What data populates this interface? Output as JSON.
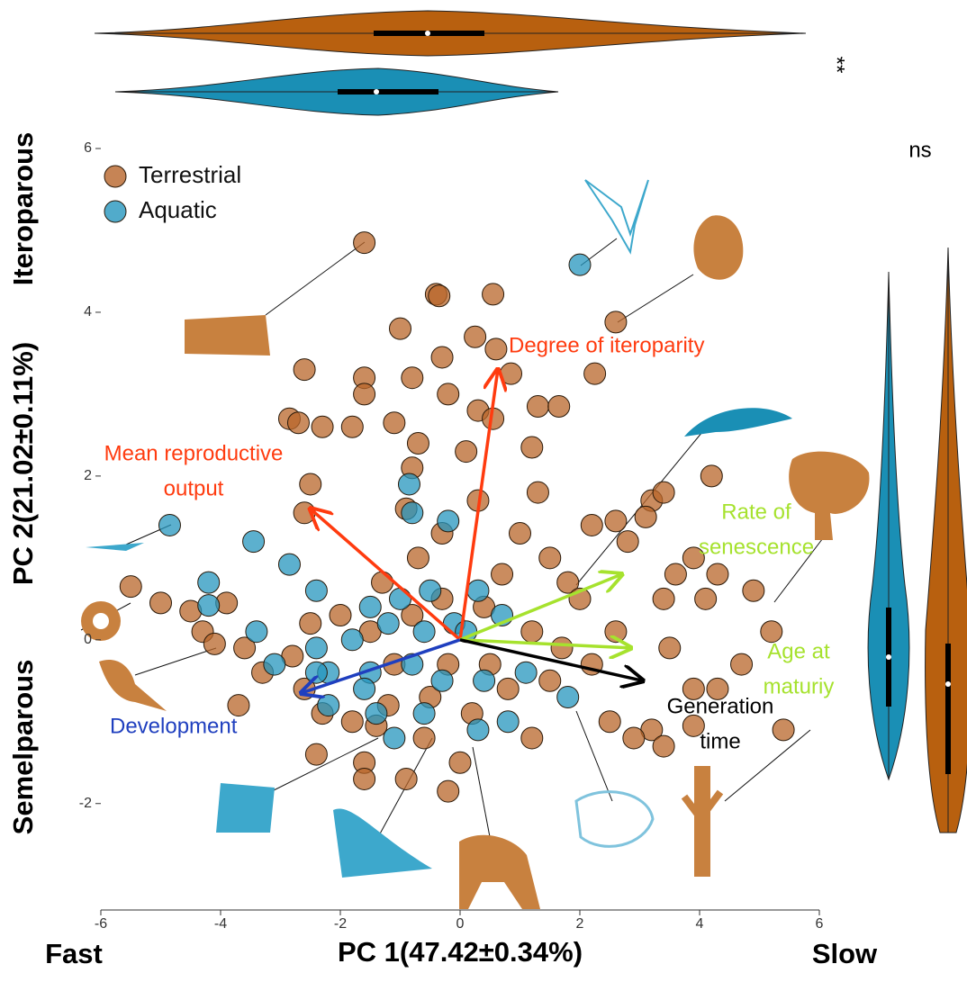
{
  "chart_data": {
    "type": "scatter",
    "x_label": "PC 1(47.42±0.34%)",
    "x_label_left": "Fast",
    "x_label_right": "Slow",
    "y_label": "PC 2(21.02±0.11%)",
    "y_label_top": "Iteroparous",
    "y_label_bottom": "Semelparous",
    "top_violin_note": "**",
    "right_violin_note": "ns",
    "xlim": [
      -6,
      6
    ],
    "ylim": [
      -3.3,
      6
    ],
    "xticks": [
      -6,
      -4,
      -2,
      0,
      2,
      4,
      6
    ],
    "yticks": [
      -2,
      0,
      2,
      4,
      6
    ],
    "legend_position": "top-left",
    "series": [
      {
        "name": "Terrestrial",
        "color": "#b8652a",
        "x": [
          -1.6,
          -0.4,
          -0.35,
          0.55,
          -1,
          0.25,
          0.6,
          2.6,
          -0.3,
          -2.6,
          -1.6,
          -0.8,
          0.85,
          2.25,
          -1.6,
          -0.2,
          -2.85,
          -2.7,
          -1.8,
          -2.3,
          -1.1,
          0.3,
          0.55,
          1.3,
          1.65,
          -0.7,
          0.1,
          1.2,
          -2.5,
          -0.8,
          0.3,
          1.3,
          3.2,
          3.4,
          4.2,
          -2.6,
          -0.9,
          -0.3,
          1,
          2.2,
          2.6,
          2.8,
          3.1,
          1.5,
          -0.7,
          3.9,
          3.6,
          4.3,
          -1.3,
          0.7,
          1.8,
          2,
          3.4,
          4.1,
          -5.5,
          -5,
          -4.5,
          -3.9,
          -4.3,
          -3.6,
          -2.5,
          -2,
          -1.5,
          -3.3,
          -2.6,
          -3.7,
          -2.3,
          -1.8,
          -1.2,
          -0.5,
          0.2,
          0.8,
          1.5,
          2.2,
          3.5,
          4.7,
          5.2,
          4.9,
          5.4,
          3.2,
          3.4,
          3.9,
          2.9,
          2.5,
          1.2,
          0,
          -0.6,
          -1.6,
          -2.4,
          -1.6,
          -0.9,
          -0.2,
          -1.4,
          0.5,
          -0.3,
          0.4,
          -0.8,
          1.2,
          -1.1,
          -0.2,
          2.6,
          1.7,
          3.9,
          4.3,
          -2.8,
          -4.1
        ],
        "y": [
          4.85,
          4.22,
          4.2,
          4.22,
          3.8,
          3.7,
          3.55,
          3.88,
          3.45,
          3.3,
          3.2,
          3.2,
          3.25,
          3.25,
          3,
          3,
          2.7,
          2.65,
          2.6,
          2.6,
          2.65,
          2.8,
          2.7,
          2.85,
          2.85,
          2.4,
          2.3,
          2.35,
          1.9,
          2.1,
          1.7,
          1.8,
          1.7,
          1.8,
          2,
          1.55,
          1.6,
          1.3,
          1.3,
          1.4,
          1.45,
          1.2,
          1.5,
          1,
          1,
          1,
          0.8,
          0.8,
          0.7,
          0.8,
          0.7,
          0.5,
          0.5,
          0.5,
          0.65,
          0.45,
          0.35,
          0.45,
          0.1,
          -0.1,
          0.2,
          0.3,
          0.1,
          -0.4,
          -0.6,
          -0.8,
          -0.9,
          -1,
          -0.8,
          -0.7,
          -0.9,
          -0.6,
          -0.5,
          -0.3,
          -0.1,
          -0.3,
          0.1,
          0.6,
          -1.1,
          -1.1,
          -1.3,
          -1.05,
          -1.2,
          -1,
          -1.2,
          -1.5,
          -1.2,
          -1.5,
          -1.4,
          -1.7,
          -1.7,
          -1.85,
          -1.05,
          -0.3,
          0.5,
          0.4,
          0.3,
          0.1,
          -0.3,
          -0.3,
          0.1,
          -0.1,
          -0.6,
          -0.6,
          -0.2,
          -0.05
        ]
      },
      {
        "name": "Aquatic",
        "color": "#2596be",
        "x": [
          2,
          -4.85,
          -0.85,
          -0.8,
          -0.2,
          -3.45,
          -4.2,
          -2.85,
          -4.2,
          -2.4,
          -3.4,
          -2.2,
          -3.1,
          -1.5,
          -1,
          -0.5,
          0.3,
          0.7,
          -1.8,
          -1.2,
          -0.6,
          -0.1,
          -2.4,
          -1.5,
          -0.8,
          -0.3,
          0.4,
          1.1,
          -2.2,
          -1.4,
          -0.6,
          0.3,
          -1.1,
          0.8,
          1.8,
          -1.6,
          -2.4,
          0.1
        ],
        "y": [
          4.58,
          1.4,
          1.9,
          1.55,
          1.45,
          1.2,
          0.7,
          0.92,
          0.42,
          0.6,
          0.1,
          -0.4,
          -0.3,
          0.4,
          0.5,
          0.6,
          0.6,
          0.3,
          0,
          0.2,
          0.1,
          0.2,
          -0.1,
          -0.4,
          -0.3,
          -0.5,
          -0.5,
          -0.4,
          -0.8,
          -0.9,
          -0.9,
          -1.1,
          -1.2,
          -1,
          -0.7,
          -0.6,
          -0.4,
          0.1
        ]
      }
    ],
    "arrows": [
      {
        "label": [
          "Degree of iteroparity"
        ],
        "color": "#ff3b0f",
        "x": 0.63,
        "y": 3.3
      },
      {
        "label": [
          "Mean reproductive",
          "output"
        ],
        "color": "#ff3b0f",
        "x": -2.5,
        "y": 1.6
      },
      {
        "label": [
          "Development"
        ],
        "color": "#1f3fbf",
        "x": -2.65,
        "y": -0.65
      },
      {
        "label": [
          "Rate of",
          "senescence"
        ],
        "color": "#a6e22e",
        "x": 2.7,
        "y": 0.8
      },
      {
        "label": [
          "Age at",
          "maturiy"
        ],
        "color": "#a6e22e",
        "x": 2.85,
        "y": -0.1
      },
      {
        "label": [
          "Generation",
          "time"
        ],
        "color": "#000000",
        "x": 3.05,
        "y": -0.5
      }
    ]
  }
}
